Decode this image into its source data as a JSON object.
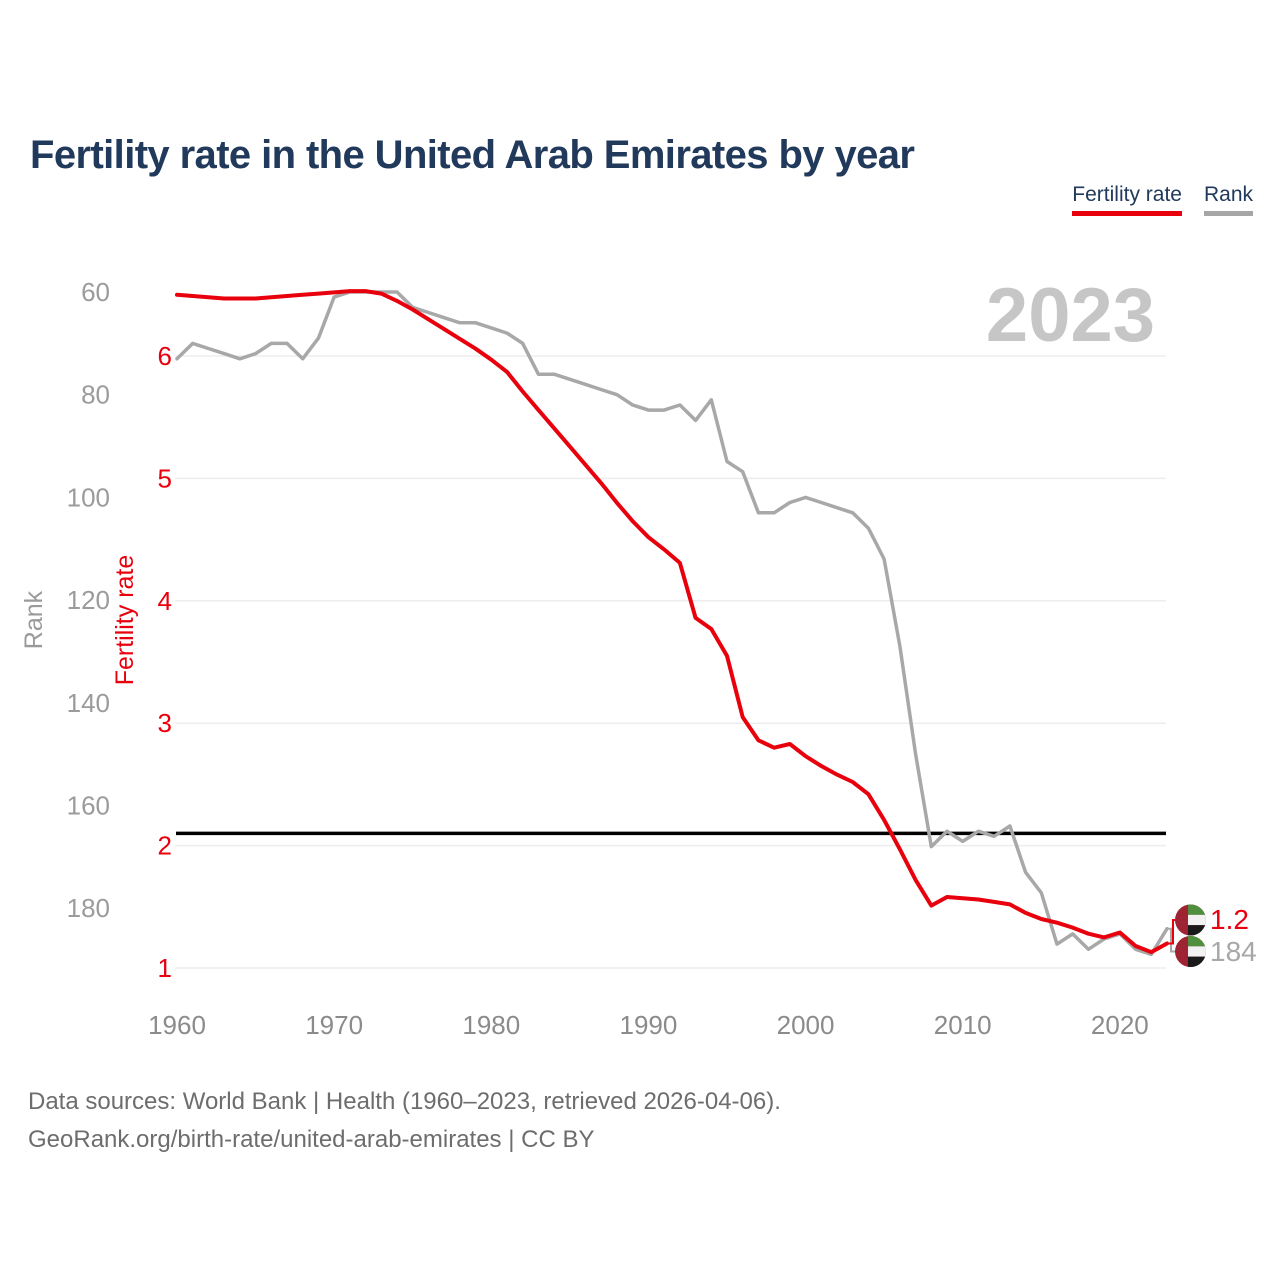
{
  "header": {
    "title": "Fertility rate in the United Arab Emirates by year"
  },
  "legend": [
    {
      "label": "Fertility rate",
      "color": "#e8000d",
      "active": true
    },
    {
      "label": "Rank",
      "color": "#a6a6a6",
      "active": false
    }
  ],
  "watermark": "2023",
  "end_labels": {
    "fertility_value": "1.2",
    "rank_value": "184",
    "flag": "uae-flag-icon"
  },
  "footer": {
    "line1": "Data sources: World Bank | Health (1960–2023, retrieved 2026-04-06).",
    "line2": "GeoRank.org/birth-rate/united-arab-emirates | CC BY"
  },
  "colors": {
    "accent_red": "#e8000d",
    "rank_gray": "#a8a8a8",
    "title_navy": "#21395a",
    "grid": "#ededed",
    "x_tick_gray": "#8b8b8b",
    "rank_tick_gray": "#9b9b9b",
    "axis_title_gray": "#9a9a9a",
    "watermark_gray": "#c6c6c6",
    "reference_black": "#000000",
    "flag_red": "#9e2433",
    "flag_green": "#4f8f3e",
    "flag_white": "#f2f2f2",
    "flag_black": "#1a1a1a"
  },
  "chart_data": {
    "type": "line",
    "title": "Fertility rate in the United Arab Emirates by year",
    "x": [
      1960,
      1961,
      1962,
      1963,
      1964,
      1965,
      1966,
      1967,
      1968,
      1969,
      1970,
      1971,
      1972,
      1973,
      1974,
      1975,
      1976,
      1977,
      1978,
      1979,
      1980,
      1981,
      1982,
      1983,
      1984,
      1985,
      1986,
      1987,
      1988,
      1989,
      1990,
      1991,
      1992,
      1993,
      1994,
      1995,
      1996,
      1997,
      1998,
      1999,
      2000,
      2001,
      2002,
      2003,
      2004,
      2005,
      2006,
      2007,
      2008,
      2009,
      2010,
      2011,
      2012,
      2013,
      2014,
      2015,
      2016,
      2017,
      2018,
      2019,
      2020,
      2021,
      2022,
      2023
    ],
    "series": [
      {
        "name": "Fertility rate",
        "axis": "fertility",
        "color": "#e8000d",
        "values": [
          6.5,
          6.49,
          6.48,
          6.47,
          6.47,
          6.47,
          6.48,
          6.49,
          6.5,
          6.51,
          6.52,
          6.53,
          6.53,
          6.51,
          6.45,
          6.38,
          6.3,
          6.22,
          6.14,
          6.06,
          5.97,
          5.87,
          5.71,
          5.56,
          5.41,
          5.26,
          5.11,
          4.96,
          4.8,
          4.65,
          4.52,
          4.42,
          4.31,
          3.86,
          3.77,
          3.55,
          3.05,
          2.86,
          2.8,
          2.83,
          2.73,
          2.65,
          2.58,
          2.52,
          2.42,
          2.21,
          1.97,
          1.72,
          1.51,
          1.58,
          1.57,
          1.56,
          1.54,
          1.52,
          1.45,
          1.4,
          1.37,
          1.33,
          1.28,
          1.25,
          1.29,
          1.18,
          1.13,
          1.2
        ]
      },
      {
        "name": "Rank",
        "axis": "rank",
        "color": "#a8a8a8",
        "values": [
          73,
          70,
          71,
          72,
          73,
          72,
          70,
          70,
          73,
          69,
          61,
          60,
          60,
          60,
          60,
          63,
          64,
          65,
          66,
          66,
          67,
          68,
          70,
          76,
          76,
          77,
          78,
          79,
          80,
          82,
          83,
          83,
          82,
          85,
          81,
          93,
          95,
          103,
          103,
          101,
          100,
          101,
          102,
          103,
          106,
          112,
          129,
          150,
          168,
          165,
          167,
          165,
          166,
          164,
          173,
          177,
          187,
          185,
          188,
          186,
          185,
          188,
          189,
          184
        ]
      }
    ],
    "fertility_axis": {
      "label": "Fertility rate",
      "ticks": [
        6,
        5,
        4,
        3,
        2,
        1
      ],
      "range": [
        1,
        6.6
      ]
    },
    "rank_axis": {
      "label": "Rank",
      "ticks": [
        60,
        80,
        100,
        120,
        140,
        160,
        180
      ],
      "range": [
        58,
        190
      ],
      "inverted": true
    },
    "x_ticks": [
      1960,
      1970,
      1980,
      1990,
      2000,
      2010,
      2020
    ],
    "reference_line": {
      "axis": "fertility",
      "value": 2.1,
      "color": "#000000"
    },
    "grid": "horizontal",
    "legend_position": "top-right"
  }
}
